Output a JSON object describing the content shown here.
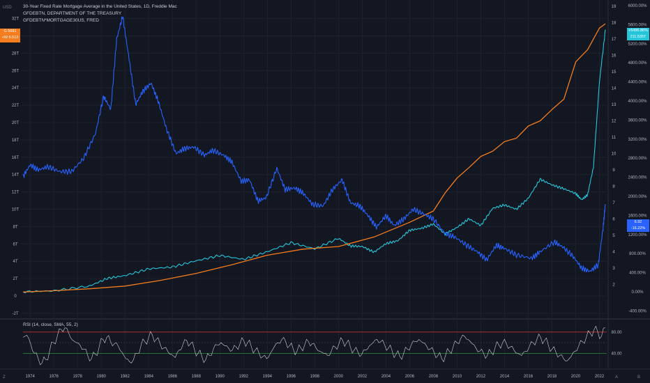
{
  "legend": {
    "title": "30-Year Fixed Rate Mortgage Average in the United States, 1D, Freddie Mac",
    "line2": "GFDEBTN, DEPARTMENT OF THE TREASURY",
    "line3": "GFDEBTN*MORTGAGE30US, FRED"
  },
  "tags": {
    "left_top": "G 5691",
    "left_bottom": "+W 6.513",
    "right_cyan_top": "+5496.86%",
    "right_cyan_bottom": "211.535T",
    "right_blue_top": "6.92",
    "right_blue_bottom": "-16.22%"
  },
  "rsi": {
    "label": "RSI (14, close, SMA, 55, 2)",
    "upper": "80.00",
    "lower": "40.00"
  },
  "corner": {
    "left_axis_unit": "USD",
    "bottom_left": "Z",
    "bottom_right_a": "A",
    "bottom_right_b": "B"
  },
  "colors": {
    "background": "#131722",
    "mortgage": "#2962ff",
    "debt": "#f57c1f",
    "product": "#26c6da",
    "rsi": "#d1d4dc"
  },
  "chart_data": [
    {
      "type": "line",
      "x_ticks": [
        "1974",
        "1976",
        "1978",
        "1980",
        "1982",
        "1984",
        "1986",
        "1988",
        "1990",
        "1992",
        "1994",
        "1996",
        "1998",
        "2000",
        "2002",
        "2004",
        "2006",
        "2008",
        "2010",
        "2012",
        "2014",
        "2016",
        "2018",
        "2020",
        "2022"
      ],
      "left_axis": {
        "unit": "USD",
        "ticks": [
          "32T",
          "30T",
          "28T",
          "26T",
          "24T",
          "22T",
          "20T",
          "18T",
          "16T",
          "14T",
          "12T",
          "10T",
          "8T",
          "6T",
          "4T",
          "2T",
          "0",
          "-2T"
        ]
      },
      "mid_axis": {
        "ticks": [
          "19",
          "18",
          "17",
          "16",
          "15",
          "14",
          "13",
          "12",
          "11",
          "10",
          "9",
          "8",
          "7",
          "6",
          "5",
          "4",
          "3",
          "2"
        ]
      },
      "right_axis": {
        "ticks": [
          "6000.00%",
          "5600.00%",
          "5200.00%",
          "4800.00%",
          "4400.00%",
          "4000.00%",
          "3600.00%",
          "3200.00%",
          "2800.00%",
          "2400.00%",
          "2000.00%",
          "1600.00%",
          "1200.00%",
          "800.00%",
          "400.00%",
          "0.00%",
          "-400.00%"
        ]
      },
      "series": [
        {
          "name": "30-Year Fixed Rate Mortgage Average in the United States",
          "axis": "mid",
          "x": [
            1973.4,
            1974,
            1974.7,
            1975.5,
            1976.5,
            1977.5,
            1978.5,
            1979.5,
            1980.2,
            1980.8,
            1981.3,
            1981.8,
            1982.3,
            1982.9,
            1983.5,
            1984.2,
            1984.8,
            1985.5,
            1986.3,
            1987,
            1987.8,
            1988.7,
            1989.4,
            1990.3,
            1991,
            1991.8,
            1992.5,
            1993.2,
            1993.9,
            1994.8,
            1995.5,
            1996.3,
            1997,
            1997.8,
            1998.7,
            1999.5,
            2000.3,
            2001,
            2001.8,
            2002.5,
            2003.2,
            2004,
            2004.7,
            2005.5,
            2006.3,
            2007.2,
            2008,
            2009,
            2009.8,
            2010.8,
            2011.7,
            2012.5,
            2013.3,
            2014,
            2015,
            2016.3,
            2017,
            2018.2,
            2018.9,
            2019.8,
            2020.5,
            2021.2,
            2021.9,
            2022.3,
            2022.5
          ],
          "values": [
            8.6,
            9.3,
            9.0,
            9.2,
            8.9,
            8.9,
            9.7,
            11.2,
            13.5,
            12.7,
            17,
            18.4,
            16,
            13,
            13.8,
            14.3,
            13.2,
            11.5,
            10.0,
            10.3,
            10.4,
            9.9,
            10.2,
            9.9,
            9.5,
            8.3,
            8.4,
            7.1,
            7.3,
            9.1,
            7.8,
            7.9,
            7.6,
            6.9,
            6.8,
            7.8,
            8.4,
            7.0,
            6.8,
            6.2,
            5.5,
            6.2,
            5.6,
            6.0,
            6.6,
            6.3,
            6.0,
            5.1,
            4.9,
            4.4,
            4.0,
            3.5,
            4.4,
            4.2,
            3.8,
            3.6,
            4.0,
            4.6,
            4.3,
            3.7,
            3.0,
            2.8,
            3.2,
            5.4,
            6.92
          ]
        },
        {
          "name": "GFDEBTN, DEPARTMENT OF THE TREASURY",
          "axis": "left",
          "x": [
            1973.4,
            1976,
            1979,
            1982,
            1985,
            1988,
            1991,
            1994,
            1997,
            2000,
            2003,
            2006,
            2008,
            2009,
            2010,
            2011,
            2012,
            2013,
            2014,
            2015,
            2016,
            2017,
            2018,
            2019,
            2020,
            2020.5,
            2021,
            2022,
            2022.5
          ],
          "values": [
            0.46,
            0.6,
            0.83,
            1.14,
            1.8,
            2.6,
            3.6,
            4.7,
            5.4,
            5.7,
            6.8,
            8.5,
            9.8,
            11.9,
            13.6,
            14.8,
            16.1,
            16.7,
            17.8,
            18.2,
            19.6,
            20.2,
            21.5,
            22.7,
            27.0,
            27.7,
            28.4,
            30.9,
            31.4
          ]
        },
        {
          "name": "GFDEBTN*MORTGAGE30US, FRED",
          "axis": "right",
          "x": [
            1973.4,
            1976,
            1979,
            1980.5,
            1982,
            1984,
            1986,
            1988,
            1990,
            1992,
            1994,
            1996,
            1998,
            2000,
            2001,
            2002,
            2003,
            2004,
            2005,
            2006,
            2007,
            2008,
            2009,
            2010,
            2011,
            2012,
            2013,
            2014,
            2015,
            2016,
            2017,
            2018,
            2019,
            2020,
            2020.5,
            2021,
            2021.5,
            2022,
            2022.5
          ],
          "values": [
            0,
            20,
            120,
            280,
            340,
            480,
            520,
            650,
            760,
            680,
            840,
            1030,
            900,
            1120,
            960,
            950,
            830,
            1010,
            1070,
            1290,
            1330,
            1420,
            1210,
            1350,
            1530,
            1390,
            1750,
            1820,
            1730,
            1960,
            2360,
            2240,
            2160,
            2060,
            1930,
            2030,
            2620,
            4400,
            5497
          ]
        }
      ]
    },
    {
      "type": "line",
      "title": "RSI (14, close, SMA, 55, 2)",
      "ylim": [
        0,
        100
      ],
      "levels": [
        80,
        40
      ],
      "series": [
        {
          "name": "RSI",
          "x_range": [
            1973.4,
            2022.5
          ],
          "values": [
            70,
            74,
            58,
            40,
            30,
            22,
            28,
            45,
            60,
            72,
            85,
            88,
            78,
            65,
            60,
            55,
            48,
            36,
            30,
            38,
            52,
            66,
            70,
            62,
            58,
            54,
            42,
            30,
            24,
            28,
            40,
            55,
            62,
            70,
            74,
            66,
            58,
            50,
            44,
            38,
            32,
            46,
            56,
            64,
            58,
            48,
            40,
            34,
            28,
            36,
            48,
            56,
            60,
            54,
            50,
            46,
            52,
            58,
            64,
            60,
            52,
            46,
            40,
            34,
            30,
            40,
            52,
            60,
            66,
            62,
            54,
            48,
            44,
            50,
            56,
            62,
            58,
            50,
            44,
            40,
            36,
            44,
            52,
            58,
            64,
            60,
            52,
            46,
            42,
            38,
            46,
            54,
            60,
            66,
            62,
            56,
            50,
            44,
            38,
            34,
            40,
            48,
            56,
            62,
            66,
            60,
            54,
            48,
            42,
            36,
            30,
            36,
            44,
            52,
            60,
            68,
            72,
            66,
            58,
            50,
            44,
            40,
            36,
            42,
            50,
            56,
            60,
            58,
            52,
            46,
            40,
            36,
            44,
            52,
            60,
            66,
            70,
            64,
            56,
            48,
            42,
            36,
            30,
            26,
            34,
            44,
            54,
            62,
            70,
            78,
            84,
            80,
            72,
            88
          ]
        }
      ]
    }
  ]
}
